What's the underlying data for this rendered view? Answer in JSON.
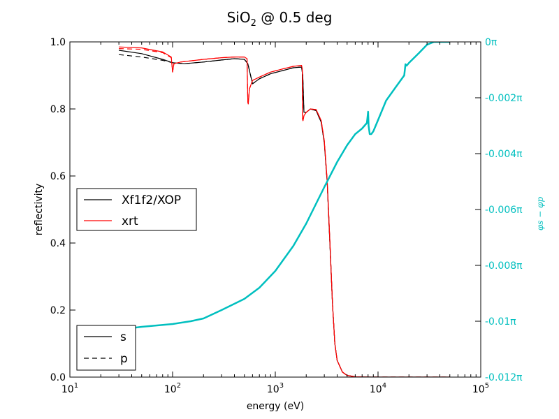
{
  "chart_data": {
    "type": "line",
    "title": "SiO",
    "title_subscript": "2",
    "title_suffix": " @ 0.5 deg",
    "xlabel": "energy (eV)",
    "ylabel": "reflectivity",
    "y2label": "φs − φp",
    "x_scale": "log",
    "xlim": [
      10,
      100000
    ],
    "ylim": [
      0.0,
      1.0
    ],
    "y2lim": [
      -0.012,
      0.0
    ],
    "x_tick_labels": [
      {
        "base": "10",
        "exp": "1"
      },
      {
        "base": "10",
        "exp": "2"
      },
      {
        "base": "10",
        "exp": "3"
      },
      {
        "base": "10",
        "exp": "4"
      },
      {
        "base": "10",
        "exp": "5"
      }
    ],
    "y_tick_labels": [
      "0.0",
      "0.2",
      "0.4",
      "0.6",
      "0.8",
      "1.0"
    ],
    "y2_tick_labels": [
      "-0.012π",
      "-0.01π",
      "-0.008π",
      "-0.006π",
      "-0.004π",
      "-0.002π",
      "0π"
    ],
    "legend_sources": {
      "location": "center-left",
      "entries": [
        {
          "label": "Xf1f2/XOP",
          "color": "#000000"
        },
        {
          "label": "xrt",
          "color": "#ff0000"
        }
      ]
    },
    "legend_polarization": {
      "location": "lower-left",
      "entries": [
        {
          "label": "s",
          "style": "solid"
        },
        {
          "label": "p",
          "style": "dashed"
        }
      ]
    },
    "colors": {
      "xop": "#000000",
      "xrt": "#ff0000",
      "phase": "#00bfbf"
    },
    "series": [
      {
        "source": "Xf1f2/XOP",
        "polarization": "s",
        "color": "#000000",
        "dash": "solid",
        "x": [
          30,
          50,
          80,
          100,
          130,
          200,
          300,
          400,
          500,
          540,
          600,
          700,
          900,
          1200,
          1500,
          1800,
          1850,
          1900,
          2000,
          2200,
          2500,
          2800,
          3000,
          3200,
          3400,
          3600,
          3800,
          4000,
          4500,
          5000,
          6000,
          8000,
          10000,
          20000,
          50000
        ],
        "y": [
          0.975,
          0.965,
          0.948,
          0.938,
          0.935,
          0.94,
          0.946,
          0.95,
          0.948,
          0.935,
          0.875,
          0.89,
          0.905,
          0.915,
          0.923,
          0.925,
          0.9,
          0.79,
          0.79,
          0.8,
          0.795,
          0.76,
          0.7,
          0.58,
          0.4,
          0.22,
          0.1,
          0.05,
          0.015,
          0.005,
          0.001,
          0.0,
          0.0,
          0.0,
          0.0
        ]
      },
      {
        "source": "Xf1f2/XOP",
        "polarization": "p",
        "color": "#000000",
        "dash": "dashed",
        "x": [
          30,
          50,
          80,
          100,
          130,
          200,
          300,
          400,
          500,
          540,
          600,
          700,
          900,
          1200,
          1500,
          1800,
          1850,
          1900,
          2000,
          2200,
          2500,
          2800,
          3000,
          3200,
          3400,
          3600,
          3800,
          4000,
          4500,
          5000,
          6000,
          8000,
          10000,
          20000,
          50000
        ],
        "y": [
          0.962,
          0.955,
          0.945,
          0.938,
          0.935,
          0.94,
          0.946,
          0.95,
          0.948,
          0.935,
          0.875,
          0.89,
          0.905,
          0.915,
          0.923,
          0.925,
          0.9,
          0.79,
          0.79,
          0.8,
          0.795,
          0.76,
          0.7,
          0.58,
          0.4,
          0.22,
          0.1,
          0.05,
          0.015,
          0.005,
          0.001,
          0.0,
          0.0,
          0.0,
          0.0
        ]
      },
      {
        "source": "xrt",
        "polarization": "s",
        "color": "#ff0000",
        "dash": "solid",
        "x": [
          30,
          50,
          80,
          97,
          100,
          103,
          120,
          200,
          300,
          400,
          500,
          530,
          540,
          545,
          560,
          600,
          700,
          900,
          1200,
          1500,
          1800,
          1830,
          1840,
          1860,
          1900,
          2000,
          2200,
          2500,
          2800,
          3000,
          3200,
          3400,
          3600,
          3800,
          4000,
          4500,
          5000,
          6000,
          8000,
          10000,
          20000,
          50000
        ],
        "y": [
          0.985,
          0.982,
          0.97,
          0.955,
          0.91,
          0.935,
          0.94,
          0.948,
          0.953,
          0.955,
          0.955,
          0.95,
          0.82,
          0.815,
          0.86,
          0.885,
          0.895,
          0.91,
          0.92,
          0.927,
          0.93,
          0.92,
          0.77,
          0.765,
          0.78,
          0.79,
          0.8,
          0.798,
          0.765,
          0.705,
          0.585,
          0.405,
          0.22,
          0.1,
          0.05,
          0.015,
          0.005,
          0.001,
          0.0,
          0.0,
          0.0,
          0.0
        ]
      },
      {
        "source": "xrt",
        "polarization": "p",
        "color": "#ff0000",
        "dash": "dashed",
        "x": [
          30,
          50,
          80,
          97,
          100,
          103,
          120,
          200,
          300,
          400,
          500,
          530,
          540,
          545,
          560,
          600,
          700,
          900,
          1200,
          1500,
          1800,
          1830,
          1840,
          1860,
          1900,
          2000,
          2200,
          2500,
          2800,
          3000,
          3200,
          3400,
          3600,
          3800,
          4000,
          4500,
          5000,
          6000,
          8000,
          10000,
          20000,
          50000
        ],
        "y": [
          0.98,
          0.978,
          0.968,
          0.953,
          0.91,
          0.935,
          0.94,
          0.948,
          0.953,
          0.955,
          0.955,
          0.95,
          0.82,
          0.815,
          0.86,
          0.885,
          0.895,
          0.91,
          0.92,
          0.927,
          0.93,
          0.92,
          0.77,
          0.765,
          0.78,
          0.79,
          0.8,
          0.798,
          0.765,
          0.705,
          0.585,
          0.405,
          0.22,
          0.1,
          0.05,
          0.015,
          0.005,
          0.001,
          0.0,
          0.0,
          0.0,
          0.0
        ]
      },
      {
        "source": "xrt",
        "quantity": "phase",
        "axis": "right",
        "color": "#00bfbf",
        "dash": "solid",
        "x": [
          30,
          50,
          100,
          150,
          200,
          300,
          500,
          700,
          1000,
          1500,
          2000,
          3000,
          4000,
          5000,
          6000,
          7000,
          7800,
          8000,
          8100,
          8300,
          8600,
          9000,
          10000,
          12000,
          15000,
          18000,
          18500,
          19000,
          20000,
          25000,
          30000,
          35000,
          40000,
          50000
        ],
        "y": [
          -0.0103,
          -0.0102,
          -0.0101,
          -0.01,
          -0.0099,
          -0.0096,
          -0.0092,
          -0.0088,
          -0.0082,
          -0.0073,
          -0.0065,
          -0.0052,
          -0.0043,
          -0.0037,
          -0.0033,
          -0.0031,
          -0.0029,
          -0.0025,
          -0.003,
          -0.0033,
          -0.0033,
          -0.0032,
          -0.0028,
          -0.0021,
          -0.0016,
          -0.0012,
          -0.0008,
          -0.00085,
          -0.00075,
          -0.0004,
          -0.0001,
          0.0,
          0.0,
          0.0
        ]
      }
    ]
  }
}
